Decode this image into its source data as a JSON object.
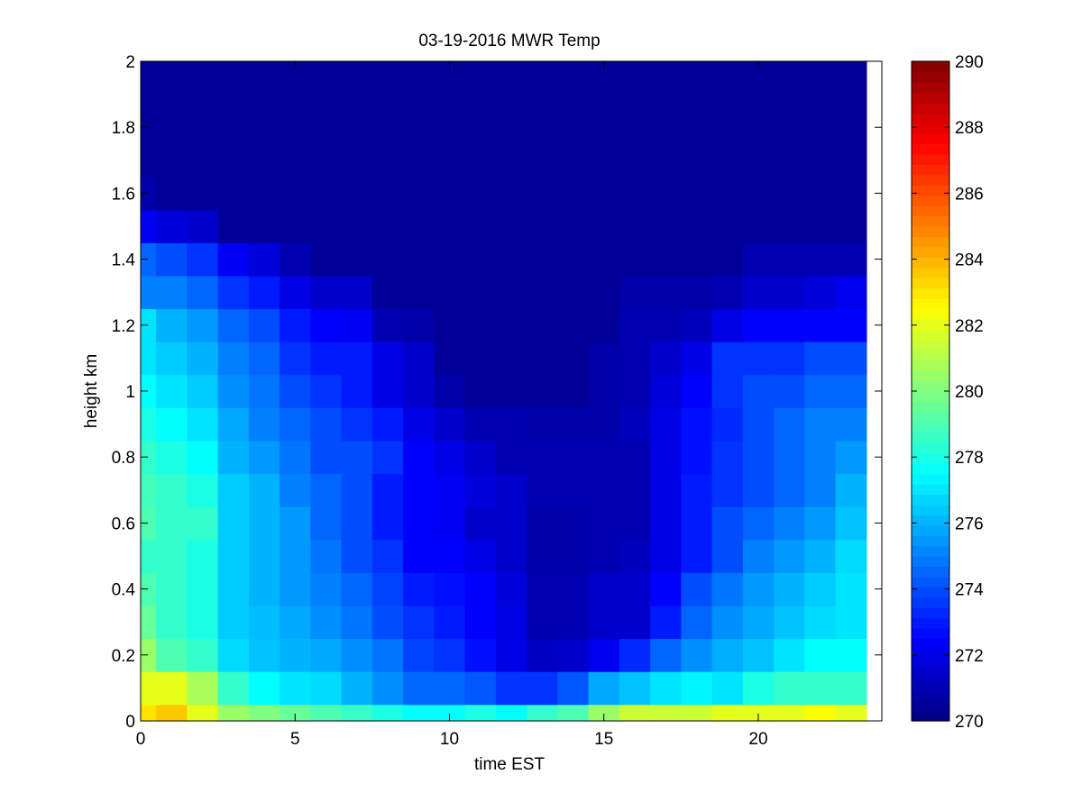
{
  "chart_data": {
    "type": "heatmap",
    "title": "03-19-2016 MWR Temp",
    "xlabel": "time EST",
    "ylabel": "height km",
    "xlim": [
      0,
      24
    ],
    "ylim": [
      0,
      2
    ],
    "x_ticks": [
      0,
      5,
      10,
      15,
      20
    ],
    "y_ticks": [
      0,
      0.2,
      0.4,
      0.6,
      0.8,
      1,
      1.2,
      1.4,
      1.6,
      1.8,
      2
    ],
    "colormap": "jet",
    "colorbar": {
      "range": [
        270,
        290
      ],
      "ticks": [
        270,
        272,
        274,
        276,
        278,
        280,
        282,
        284,
        286,
        288,
        290
      ]
    },
    "x": [
      0,
      1,
      2,
      3,
      4,
      5,
      6,
      7,
      8,
      9,
      10,
      11,
      12,
      13,
      14,
      15,
      16,
      17,
      18,
      19,
      20,
      21,
      22,
      23
    ],
    "y_edges": [
      0,
      0.05,
      0.15,
      0.25,
      0.35,
      0.45,
      0.55,
      0.65,
      0.75,
      0.85,
      0.95,
      1.05,
      1.15,
      1.25,
      1.35,
      1.45,
      1.55,
      1.65,
      1.75,
      1.85,
      2.0
    ],
    "z": [
      [
        283.0,
        283.6,
        282.0,
        280.5,
        280.0,
        279.5,
        279.0,
        278.6,
        278.0,
        277.5,
        277.5,
        278.0,
        277.5,
        278.5,
        279.0,
        280.5,
        281.5,
        281.5,
        281.5,
        282.0,
        282.0,
        282.0,
        282.5,
        282.0
      ],
      [
        282.0,
        282.0,
        280.8,
        278.5,
        277.5,
        277.0,
        276.8,
        276.0,
        275.3,
        274.5,
        274.5,
        274.2,
        273.5,
        273.5,
        274.2,
        275.8,
        276.3,
        277.0,
        277.3,
        277.0,
        278.0,
        278.5,
        278.5,
        278.5
      ],
      [
        280.5,
        279.0,
        278.5,
        276.8,
        276.3,
        276.0,
        275.8,
        275.3,
        274.8,
        273.8,
        273.5,
        272.8,
        272.0,
        271.3,
        271.5,
        272.2,
        273.3,
        274.5,
        275.3,
        275.9,
        276.3,
        277.0,
        277.5,
        277.5
      ],
      [
        279.5,
        278.5,
        278.0,
        276.5,
        276.2,
        275.8,
        275.3,
        274.8,
        274.0,
        273.5,
        273.0,
        272.5,
        272.0,
        271.0,
        271.0,
        271.5,
        271.5,
        273.0,
        274.5,
        275.3,
        275.8,
        276.3,
        276.8,
        277.0
      ],
      [
        279.0,
        278.5,
        278.0,
        276.5,
        276.0,
        275.5,
        275.0,
        274.5,
        273.8,
        273.0,
        272.8,
        272.5,
        271.8,
        271.0,
        271.0,
        271.5,
        271.5,
        272.5,
        274.0,
        274.8,
        275.5,
        276.0,
        276.5,
        277.0
      ],
      [
        278.5,
        278.5,
        278.0,
        276.5,
        276.0,
        275.5,
        274.8,
        274.0,
        273.5,
        272.5,
        272.5,
        272.0,
        271.5,
        270.8,
        270.8,
        271.0,
        271.2,
        272.0,
        273.0,
        274.0,
        275.0,
        275.5,
        276.0,
        276.8
      ],
      [
        279.0,
        278.5,
        278.5,
        276.5,
        276.0,
        275.5,
        274.5,
        274.0,
        273.0,
        272.5,
        272.3,
        271.5,
        271.5,
        270.8,
        270.8,
        271.0,
        271.0,
        272.0,
        273.0,
        274.0,
        274.5,
        275.0,
        275.5,
        276.3
      ],
      [
        278.8,
        278.5,
        278.0,
        276.5,
        276.0,
        275.0,
        274.5,
        274.0,
        273.0,
        272.5,
        272.3,
        271.8,
        271.5,
        271.0,
        271.0,
        271.0,
        271.0,
        272.0,
        273.0,
        273.5,
        274.0,
        274.5,
        275.0,
        276.0
      ],
      [
        278.5,
        278.0,
        277.5,
        276.0,
        275.5,
        274.8,
        274.0,
        274.0,
        273.5,
        272.5,
        272.0,
        271.5,
        271.0,
        271.0,
        271.0,
        271.0,
        271.0,
        272.0,
        272.8,
        273.5,
        274.0,
        274.5,
        275.0,
        275.5
      ],
      [
        278.0,
        277.5,
        277.0,
        275.8,
        275.0,
        274.5,
        274.0,
        273.5,
        273.0,
        272.0,
        271.5,
        271.0,
        271.0,
        270.8,
        270.8,
        270.8,
        271.2,
        272.0,
        272.8,
        273.3,
        274.0,
        274.5,
        275.0,
        275.0
      ],
      [
        277.5,
        277.0,
        276.5,
        275.3,
        274.8,
        274.0,
        273.5,
        273.0,
        272.0,
        271.5,
        270.8,
        270.5,
        270.5,
        270.5,
        270.5,
        270.8,
        271.0,
        271.8,
        272.5,
        273.5,
        274.0,
        274.0,
        274.5,
        274.5
      ],
      [
        277.0,
        276.5,
        276.0,
        275.0,
        274.5,
        273.5,
        273.0,
        273.0,
        272.0,
        271.5,
        270.5,
        270.5,
        270.5,
        270.5,
        270.5,
        270.8,
        271.0,
        271.5,
        272.0,
        273.5,
        273.5,
        273.5,
        274.0,
        274.0
      ],
      [
        277.0,
        276.0,
        275.5,
        274.5,
        274.0,
        273.0,
        272.5,
        272.3,
        271.0,
        270.8,
        270.5,
        270.5,
        270.5,
        270.5,
        270.5,
        270.5,
        271.0,
        271.0,
        271.2,
        272.0,
        272.5,
        272.5,
        272.5,
        272.5
      ],
      [
        275.0,
        275.0,
        274.5,
        273.5,
        273.0,
        272.0,
        271.5,
        271.5,
        270.5,
        270.5,
        270.5,
        270.5,
        270.5,
        270.5,
        270.5,
        270.5,
        270.8,
        270.8,
        270.8,
        271.0,
        271.5,
        271.5,
        271.8,
        272.2
      ],
      [
        274.5,
        274.0,
        273.5,
        272.3,
        271.8,
        271.0,
        270.5,
        270.5,
        270.5,
        270.5,
        270.5,
        270.5,
        270.5,
        270.5,
        270.5,
        270.5,
        270.5,
        270.5,
        270.5,
        270.5,
        271.0,
        271.0,
        271.0,
        271.0
      ],
      [
        272.2,
        271.8,
        271.5,
        270.5,
        270.5,
        270.5,
        270.5,
        270.5,
        270.5,
        270.5,
        270.5,
        270.5,
        270.5,
        270.5,
        270.5,
        270.5,
        270.5,
        270.5,
        270.5,
        270.5,
        270.5,
        270.5,
        270.5,
        270.5
      ],
      [
        270.8,
        270.5,
        270.5,
        270.5,
        270.5,
        270.5,
        270.5,
        270.5,
        270.5,
        270.5,
        270.5,
        270.5,
        270.5,
        270.5,
        270.5,
        270.5,
        270.5,
        270.5,
        270.5,
        270.5,
        270.5,
        270.5,
        270.5,
        270.5
      ],
      [
        270.5,
        270.5,
        270.5,
        270.5,
        270.5,
        270.5,
        270.5,
        270.5,
        270.5,
        270.5,
        270.5,
        270.5,
        270.5,
        270.5,
        270.5,
        270.5,
        270.5,
        270.5,
        270.5,
        270.5,
        270.5,
        270.5,
        270.5,
        270.5
      ],
      [
        270.5,
        270.5,
        270.5,
        270.5,
        270.5,
        270.5,
        270.5,
        270.5,
        270.5,
        270.5,
        270.5,
        270.5,
        270.5,
        270.5,
        270.5,
        270.5,
        270.5,
        270.5,
        270.5,
        270.5,
        270.5,
        270.5,
        270.5,
        270.5
      ],
      [
        270.5,
        270.5,
        270.5,
        270.5,
        270.5,
        270.5,
        270.5,
        270.5,
        270.5,
        270.5,
        270.5,
        270.5,
        270.5,
        270.5,
        270.5,
        270.5,
        270.5,
        270.5,
        270.5,
        270.5,
        270.5,
        270.5,
        270.5,
        270.5
      ]
    ]
  }
}
